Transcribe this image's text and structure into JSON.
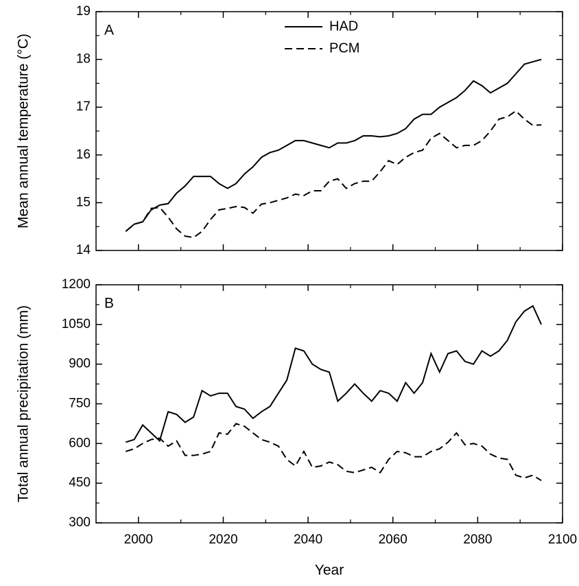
{
  "chart_data": [
    {
      "type": "line",
      "annotation": "A",
      "ylabel": "Mean annual temperature (°C)",
      "legend": "upper center",
      "xlim": [
        1990,
        2100
      ],
      "ylim": [
        14,
        19
      ],
      "yticks": [
        14,
        15,
        16,
        17,
        18,
        19
      ],
      "x": [
        1997,
        1999,
        2001,
        2003,
        2005,
        2007,
        2009,
        2011,
        2013,
        2015,
        2017,
        2019,
        2021,
        2023,
        2025,
        2027,
        2029,
        2031,
        2033,
        2035,
        2037,
        2039,
        2041,
        2043,
        2045,
        2047,
        2049,
        2051,
        2053,
        2055,
        2057,
        2059,
        2061,
        2063,
        2065,
        2067,
        2069,
        2071,
        2073,
        2075,
        2077,
        2079,
        2081,
        2083,
        2085,
        2087,
        2089,
        2091,
        2093,
        2095
      ],
      "series": [
        {
          "name": "HAD",
          "color": "#000000",
          "line_style": "solid",
          "values": [
            14.4,
            14.55,
            14.6,
            14.85,
            14.95,
            14.98,
            15.2,
            15.35,
            15.55,
            15.55,
            15.55,
            15.4,
            15.3,
            15.4,
            15.6,
            15.75,
            15.95,
            16.05,
            16.1,
            16.2,
            16.3,
            16.3,
            16.25,
            16.2,
            16.15,
            16.25,
            16.25,
            16.3,
            16.4,
            16.4,
            16.38,
            16.4,
            16.45,
            16.55,
            16.75,
            16.85,
            16.85,
            17.0,
            17.1,
            17.2,
            17.35,
            17.55,
            17.45,
            17.3,
            17.4,
            17.5,
            17.7,
            17.9,
            17.95,
            18.0
          ]
        },
        {
          "name": "PCM",
          "color": "#000000",
          "line_style": "dashed",
          "values": [
            14.4,
            14.55,
            14.6,
            14.88,
            14.9,
            14.7,
            14.45,
            14.3,
            14.27,
            14.4,
            14.65,
            14.85,
            14.88,
            14.92,
            14.9,
            14.78,
            14.97,
            15.0,
            15.05,
            15.1,
            15.18,
            15.15,
            15.25,
            15.25,
            15.45,
            15.5,
            15.3,
            15.4,
            15.45,
            15.45,
            15.65,
            15.88,
            15.8,
            15.95,
            16.05,
            16.1,
            16.35,
            16.45,
            16.3,
            16.15,
            16.2,
            16.2,
            16.3,
            16.5,
            16.75,
            16.8,
            16.92,
            16.75,
            16.62,
            16.63
          ]
        }
      ]
    },
    {
      "type": "line",
      "annotation": "B",
      "ylabel": "Total annual precipitation (mm)",
      "xlabel": "Year",
      "xlim": [
        1990,
        2100
      ],
      "xticks": [
        2000,
        2020,
        2040,
        2060,
        2080,
        2100
      ],
      "ylim": [
        300,
        1200
      ],
      "yticks": [
        300,
        450,
        600,
        750,
        900,
        1050,
        1200
      ],
      "x": [
        1997,
        1999,
        2001,
        2003,
        2005,
        2007,
        2009,
        2011,
        2013,
        2015,
        2017,
        2019,
        2021,
        2023,
        2025,
        2027,
        2029,
        2031,
        2033,
        2035,
        2037,
        2039,
        2041,
        2043,
        2045,
        2047,
        2049,
        2051,
        2053,
        2055,
        2057,
        2059,
        2061,
        2063,
        2065,
        2067,
        2069,
        2071,
        2073,
        2075,
        2077,
        2079,
        2081,
        2083,
        2085,
        2087,
        2089,
        2091,
        2093,
        2095
      ],
      "series": [
        {
          "color": "#000000",
          "line_style": "solid",
          "values": [
            605,
            615,
            670,
            640,
            610,
            720,
            710,
            680,
            700,
            800,
            780,
            790,
            790,
            740,
            730,
            695,
            720,
            740,
            790,
            840,
            960,
            950,
            900,
            880,
            870,
            760,
            790,
            825,
            790,
            760,
            800,
            790,
            760,
            830,
            790,
            830,
            940,
            870,
            940,
            950,
            910,
            900,
            950,
            930,
            950,
            990,
            1060,
            1100,
            1120,
            1050
          ]
        },
        {
          "color": "#000000",
          "line_style": "dashed",
          "values": [
            570,
            580,
            600,
            615,
            620,
            590,
            610,
            555,
            555,
            560,
            570,
            640,
            635,
            675,
            665,
            640,
            615,
            605,
            590,
            540,
            515,
            570,
            510,
            515,
            530,
            520,
            495,
            490,
            500,
            510,
            490,
            540,
            570,
            565,
            550,
            550,
            570,
            580,
            605,
            640,
            595,
            600,
            590,
            560,
            545,
            540,
            480,
            470,
            480,
            460
          ]
        }
      ]
    }
  ]
}
